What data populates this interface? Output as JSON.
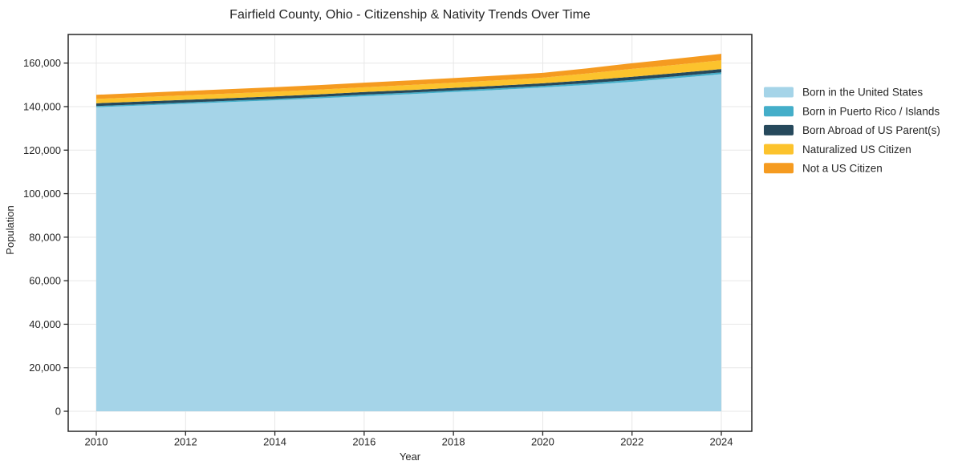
{
  "chart_data": {
    "type": "area",
    "stacked": true,
    "title": "Fairfield County, Ohio - Citizenship & Nativity Trends Over Time",
    "xlabel": "Year",
    "ylabel": "Population",
    "grid": true,
    "legend_position": "right-outside",
    "x": [
      2010,
      2011,
      2012,
      2013,
      2014,
      2015,
      2016,
      2017,
      2018,
      2019,
      2020,
      2021,
      2022,
      2023,
      2024
    ],
    "x_ticks": [
      2010,
      2012,
      2014,
      2016,
      2018,
      2020,
      2022,
      2024
    ],
    "y_ticks": [
      0,
      20000,
      40000,
      60000,
      80000,
      100000,
      120000,
      140000,
      160000
    ],
    "xlim": [
      2009.37,
      2024.68
    ],
    "ylim": [
      -9000,
      173100
    ],
    "grid_color": "#e7e7e7",
    "spine_color": "#262626",
    "text_color": "#262626",
    "background_color": "#ffffff",
    "series": [
      {
        "name": "Born in the United States",
        "color": "#a5d4e8",
        "values": [
          139700,
          140500,
          141300,
          142100,
          142900,
          143800,
          144800,
          145700,
          146700,
          147700,
          148800,
          150000,
          151400,
          153100,
          154900
        ]
      },
      {
        "name": "Born in Puerto Rico / Islands",
        "color": "#44aec9",
        "values": [
          550,
          570,
          590,
          610,
          640,
          670,
          700,
          710,
          720,
          725,
          730,
          790,
          840,
          845,
          850
        ]
      },
      {
        "name": "Born Abroad of US Parent(s)",
        "color": "#26495c",
        "values": [
          1280,
          1260,
          1240,
          1220,
          1210,
          1200,
          1200,
          1200,
          1200,
          1205,
          1210,
          1330,
          1460,
          1480,
          1500
        ]
      },
      {
        "name": "Naturalized US Citizen",
        "color": "#fcc32d",
        "values": [
          2000,
          2030,
          2070,
          2110,
          2150,
          2170,
          2200,
          2280,
          2370,
          2460,
          2560,
          3100,
          3660,
          3830,
          4000
        ]
      },
      {
        "name": "Not a US Citizen",
        "color": "#f59b20",
        "values": [
          1900,
          1930,
          1970,
          2010,
          2040,
          2070,
          2100,
          2120,
          2150,
          2170,
          2200,
          2390,
          2580,
          2790,
          3000
        ]
      }
    ]
  }
}
